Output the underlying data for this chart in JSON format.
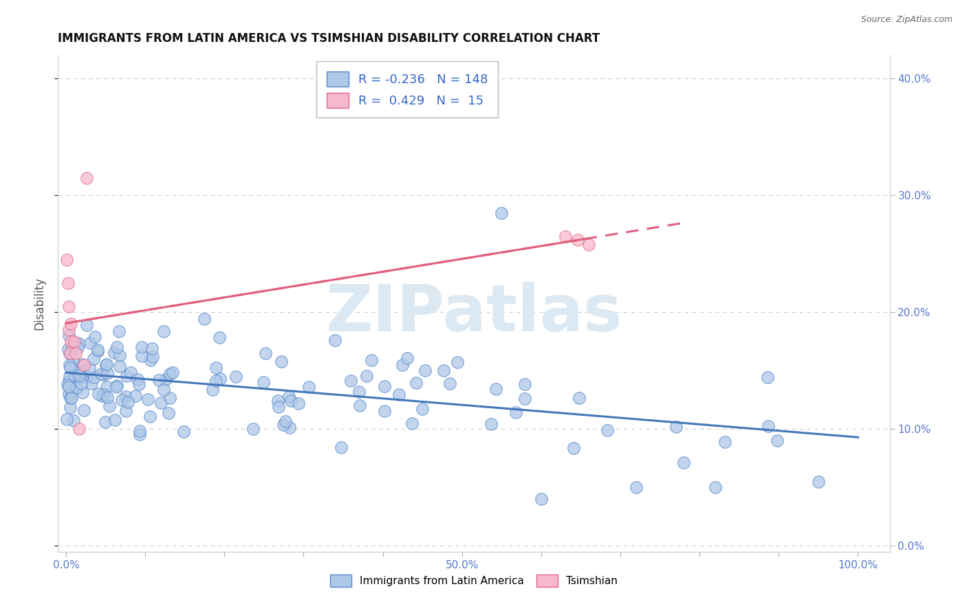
{
  "title": "IMMIGRANTS FROM LATIN AMERICA VS TSIMSHIAN DISABILITY CORRELATION CHART",
  "source": "Source: ZipAtlas.com",
  "ylabel": "Disability",
  "xlim": [
    -0.01,
    1.04
  ],
  "ylim": [
    -0.005,
    0.42
  ],
  "yticks": [
    0.0,
    0.1,
    0.2,
    0.3,
    0.4
  ],
  "xticks": [
    0.0,
    0.1,
    0.2,
    0.3,
    0.4,
    0.5,
    0.6,
    0.7,
    0.8,
    0.9,
    1.0
  ],
  "background_color": "#ffffff",
  "grid_color": "#cccccc",
  "watermark_text": "ZIPatlas",
  "watermark_color": "#dce8f2",
  "series1_name": "Immigrants from Latin America",
  "series1_R": -0.236,
  "series1_N": 148,
  "series1_fill": "#aec8e8",
  "series1_edge": "#5588cc",
  "series1_trend": "#4477bb",
  "series2_name": "Tsimshian",
  "series2_R": 0.429,
  "series2_N": 15,
  "series2_fill": "#f8b8cc",
  "series2_edge": "#e06888",
  "series2_trend": "#e06080",
  "tick_color": "#5577cc",
  "title_color": "#111111",
  "legend_color": "#3366cc",
  "source_color": "#666666"
}
